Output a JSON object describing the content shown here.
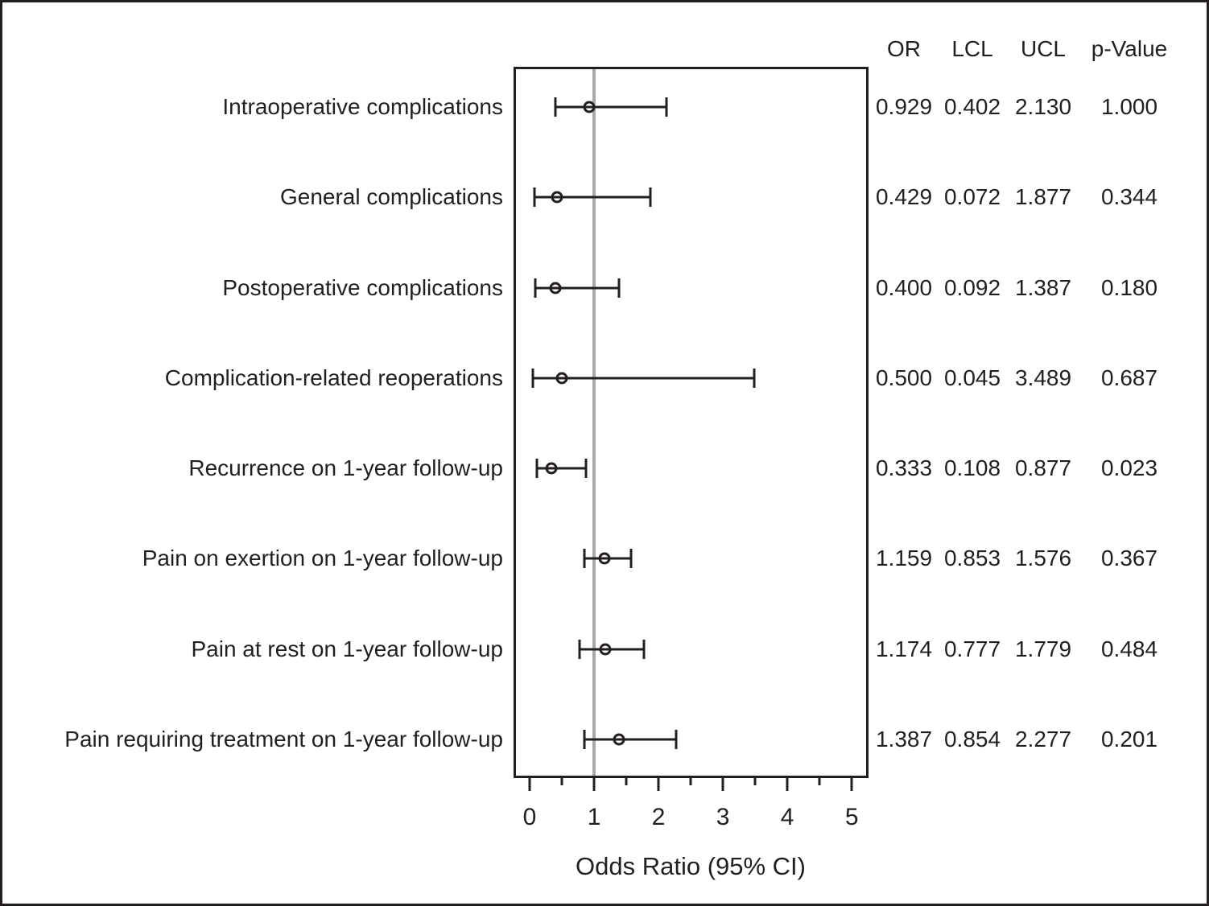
{
  "chart_data": {
    "type": "forest",
    "title": "",
    "xlabel": "Odds Ratio (95% CI)",
    "xlim": [
      -0.25,
      5.26
    ],
    "x_major_ticks": [
      0,
      1,
      2,
      3,
      4,
      5
    ],
    "x_minor_ticks": [
      0.5,
      1.5,
      2.5,
      3.5,
      4.5
    ],
    "reference_line_x": 1,
    "grid": false,
    "columns": [
      "OR",
      "LCL",
      "UCL",
      "p-Value"
    ],
    "rows": [
      {
        "label": "Intraoperative complications",
        "or": "0.929",
        "lcl": "0.402",
        "ucl": "2.130",
        "p": "1.000"
      },
      {
        "label": "General complications",
        "or": "0.429",
        "lcl": "0.072",
        "ucl": "1.877",
        "p": "0.344"
      },
      {
        "label": "Postoperative complications",
        "or": "0.400",
        "lcl": "0.092",
        "ucl": "1.387",
        "p": "0.180"
      },
      {
        "label": "Complication-related reoperations",
        "or": "0.500",
        "lcl": "0.045",
        "ucl": "3.489",
        "p": "0.687"
      },
      {
        "label": "Recurrence on 1-year follow-up",
        "or": "0.333",
        "lcl": "0.108",
        "ucl": "0.877",
        "p": "0.023"
      },
      {
        "label": "Pain on exertion on 1-year follow-up",
        "or": "1.159",
        "lcl": "0.853",
        "ucl": "1.576",
        "p": "0.367"
      },
      {
        "label": "Pain at rest on 1-year follow-up",
        "or": "1.174",
        "lcl": "0.777",
        "ucl": "1.779",
        "p": "0.484"
      },
      {
        "label": "Pain requiring treatment on 1-year follow-up",
        "or": "1.387",
        "lcl": "0.854",
        "ucl": "2.277",
        "p": "0.201"
      }
    ]
  },
  "colors": {
    "ink": "#231f20",
    "reference_line": "#a9a9a9",
    "background": "#ffffff"
  }
}
